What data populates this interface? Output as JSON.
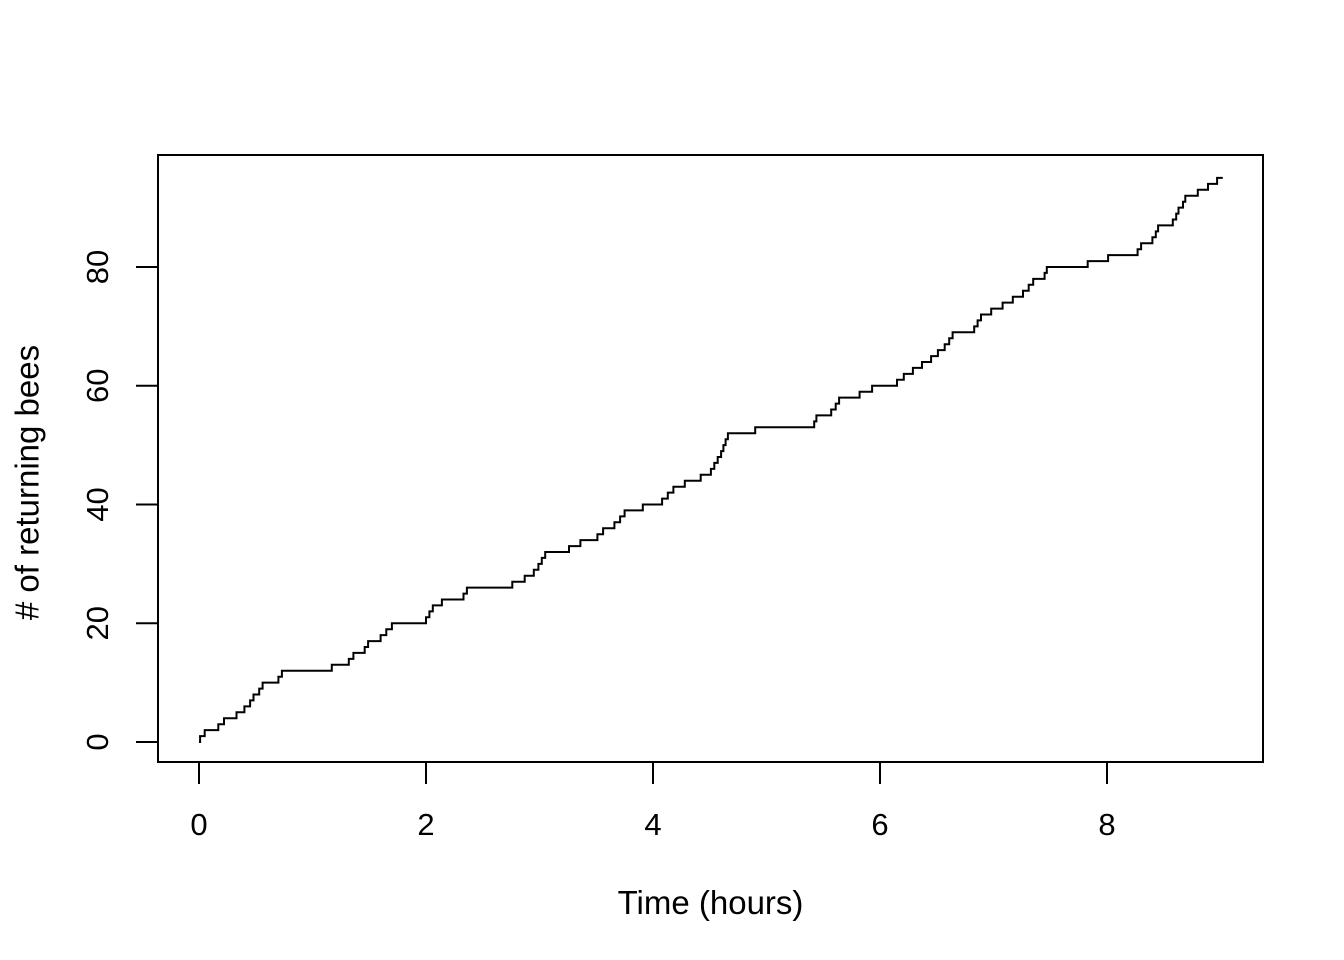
{
  "figure": {
    "background": "#ffffff",
    "foreground": "#000000"
  },
  "chart_data": {
    "type": "line",
    "line_style": "step",
    "title": "",
    "xlabel": "Time (hours)",
    "ylabel": "# of returning bees",
    "x_ticks": [
      0,
      2,
      4,
      6,
      8
    ],
    "y_ticks": [
      0,
      20,
      40,
      60,
      80
    ],
    "xlim": [
      0,
      9.02
    ],
    "ylim": [
      0,
      95
    ],
    "grid": false,
    "legend_position": "none",
    "line_color": "#000000",
    "background": "#ffffff",
    "series": [
      {
        "name": "cumulative-returning-bees",
        "description": "cumulative count of returning bees over time (step function)",
        "points": [
          [
            0.01,
            1
          ],
          [
            0.05,
            2
          ],
          [
            0.17,
            3
          ],
          [
            0.22,
            4
          ],
          [
            0.33,
            5
          ],
          [
            0.4,
            6
          ],
          [
            0.45,
            7
          ],
          [
            0.48,
            8
          ],
          [
            0.53,
            9
          ],
          [
            0.56,
            10
          ],
          [
            0.7,
            11
          ],
          [
            0.73,
            12
          ],
          [
            1.17,
            13
          ],
          [
            1.32,
            14
          ],
          [
            1.36,
            15
          ],
          [
            1.46,
            16
          ],
          [
            1.49,
            17
          ],
          [
            1.6,
            18
          ],
          [
            1.65,
            19
          ],
          [
            1.7,
            20
          ],
          [
            2.0,
            21
          ],
          [
            2.03,
            22
          ],
          [
            2.06,
            23
          ],
          [
            2.14,
            24
          ],
          [
            2.33,
            25
          ],
          [
            2.36,
            26
          ],
          [
            2.76,
            27
          ],
          [
            2.87,
            28
          ],
          [
            2.95,
            29
          ],
          [
            2.99,
            30
          ],
          [
            3.02,
            31
          ],
          [
            3.05,
            32
          ],
          [
            3.26,
            33
          ],
          [
            3.36,
            34
          ],
          [
            3.51,
            35
          ],
          [
            3.56,
            36
          ],
          [
            3.66,
            37
          ],
          [
            3.71,
            38
          ],
          [
            3.75,
            39
          ],
          [
            3.91,
            40
          ],
          [
            4.08,
            41
          ],
          [
            4.13,
            42
          ],
          [
            4.18,
            43
          ],
          [
            4.28,
            44
          ],
          [
            4.42,
            45
          ],
          [
            4.51,
            46
          ],
          [
            4.54,
            47
          ],
          [
            4.57,
            48
          ],
          [
            4.6,
            49
          ],
          [
            4.62,
            50
          ],
          [
            4.64,
            51
          ],
          [
            4.66,
            52
          ],
          [
            4.9,
            53
          ],
          [
            5.42,
            54
          ],
          [
            5.44,
            55
          ],
          [
            5.57,
            56
          ],
          [
            5.61,
            57
          ],
          [
            5.64,
            58
          ],
          [
            5.82,
            59
          ],
          [
            5.93,
            60
          ],
          [
            6.15,
            61
          ],
          [
            6.21,
            62
          ],
          [
            6.29,
            63
          ],
          [
            6.37,
            64
          ],
          [
            6.45,
            65
          ],
          [
            6.51,
            66
          ],
          [
            6.57,
            67
          ],
          [
            6.61,
            68
          ],
          [
            6.64,
            69
          ],
          [
            6.83,
            70
          ],
          [
            6.86,
            71
          ],
          [
            6.89,
            72
          ],
          [
            6.98,
            73
          ],
          [
            7.08,
            74
          ],
          [
            7.17,
            75
          ],
          [
            7.26,
            76
          ],
          [
            7.31,
            77
          ],
          [
            7.35,
            78
          ],
          [
            7.45,
            79
          ],
          [
            7.47,
            80
          ],
          [
            7.83,
            81
          ],
          [
            8.01,
            82
          ],
          [
            8.27,
            83
          ],
          [
            8.3,
            84
          ],
          [
            8.4,
            85
          ],
          [
            8.43,
            86
          ],
          [
            8.45,
            87
          ],
          [
            8.58,
            88
          ],
          [
            8.61,
            89
          ],
          [
            8.63,
            90
          ],
          [
            8.67,
            91
          ],
          [
            8.69,
            92
          ],
          [
            8.8,
            93
          ],
          [
            8.89,
            94
          ],
          [
            8.97,
            95
          ],
          [
            9.02,
            95
          ]
        ]
      }
    ]
  }
}
